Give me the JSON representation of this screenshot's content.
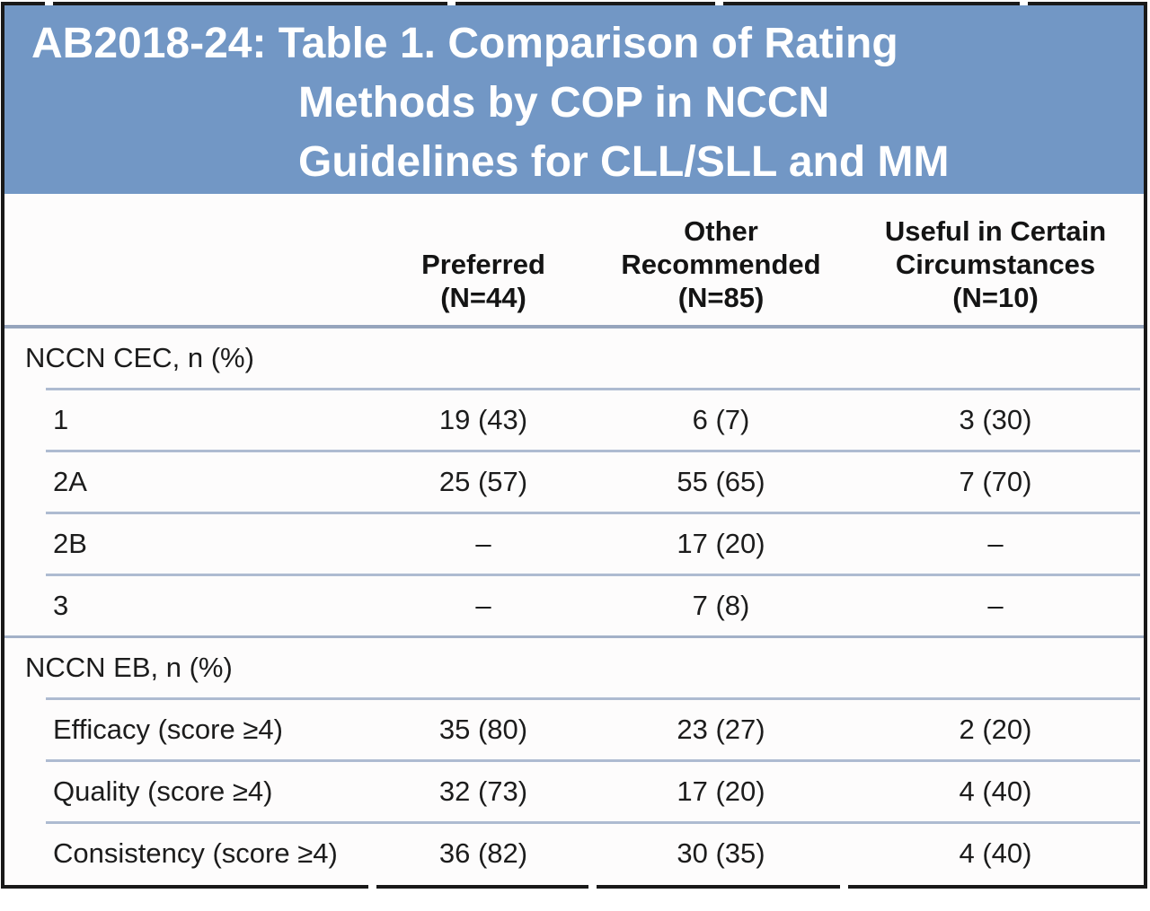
{
  "title": {
    "line1": "AB2018-24: Table 1. Comparison of Rating",
    "line2": "Methods by COP in NCCN",
    "line3": "Guidelines for CLL/SLL and MM"
  },
  "column_headers": [
    {
      "lines": [
        "Preferred",
        "(N=44)"
      ]
    },
    {
      "lines": [
        "Other",
        "Recommended",
        "(N=85)"
      ]
    },
    {
      "lines": [
        "Useful in Certain",
        "Circumstances",
        "(N=10)"
      ]
    }
  ],
  "sections": [
    {
      "label": "NCCN CEC, n (%)",
      "rows": [
        {
          "label": "1",
          "values": [
            "19 (43)",
            "6 (7)",
            "3 (30)"
          ]
        },
        {
          "label": "2A",
          "values": [
            "25 (57)",
            "55 (65)",
            "7 (70)"
          ]
        },
        {
          "label": "2B",
          "values": [
            "–",
            "17 (20)",
            "–"
          ]
        },
        {
          "label": "3",
          "values": [
            "–",
            "7 (8)",
            "–"
          ]
        }
      ]
    },
    {
      "label": "NCCN EB, n (%)",
      "rows": [
        {
          "label": "Efficacy (score ≥4)",
          "values": [
            "35 (80)",
            "23 (27)",
            "2 (20)"
          ]
        },
        {
          "label": "Quality (score ≥4)",
          "values": [
            "32 (73)",
            "17 (20)",
            "4 (40)"
          ]
        },
        {
          "label": "Consistency (score ≥4)",
          "values": [
            "36 (82)",
            "30 (35)",
            "4 (40)"
          ]
        }
      ]
    }
  ],
  "colors": {
    "title_bg": "#7297c5",
    "title_text": "#ffffff",
    "card_border": "#191919",
    "section_divider": "#96a5bd",
    "row_divider": "#aebbd1",
    "body_text": "#1c1c1c",
    "body_bg": "#fdfcfc"
  },
  "chart_data": {
    "type": "table",
    "title": "AB2018-24: Table 1. Comparison of Rating Methods by COP in NCCN Guidelines for CLL/SLL and MM",
    "columns": [
      "",
      "Preferred (N=44)",
      "Other Recommended (N=85)",
      "Useful in Certain Circumstances (N=10)"
    ],
    "rows": [
      [
        "NCCN CEC, n (%)",
        "",
        "",
        ""
      ],
      [
        "1",
        "19 (43)",
        "6 (7)",
        "3 (30)"
      ],
      [
        "2A",
        "25 (57)",
        "55 (65)",
        "7 (70)"
      ],
      [
        "2B",
        "–",
        "17 (20)",
        "–"
      ],
      [
        "3",
        "–",
        "7 (8)",
        "–"
      ],
      [
        "NCCN EB, n (%)",
        "",
        "",
        ""
      ],
      [
        "Efficacy (score ≥4)",
        "35 (80)",
        "23 (27)",
        "2 (20)"
      ],
      [
        "Quality (score ≥4)",
        "32 (73)",
        "17 (20)",
        "4 (40)"
      ],
      [
        "Consistency (score ≥4)",
        "36 (82)",
        "30 (35)",
        "4 (40)"
      ]
    ]
  }
}
